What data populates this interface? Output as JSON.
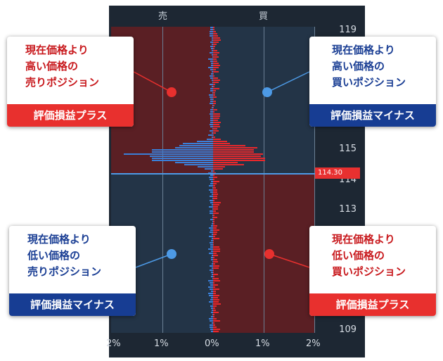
{
  "header": {
    "sell_label": "売",
    "buy_label": "買"
  },
  "price_axis": {
    "labels": [
      "119",
      "115",
      "114",
      "113",
      "109"
    ]
  },
  "percent_axis": {
    "labels": [
      "2%",
      "1%",
      "0%",
      "1%",
      "2%"
    ]
  },
  "current_price": "114.30",
  "callouts": {
    "top_left": {
      "lines": [
        "現在価格より",
        "高い価格の",
        "売りポジション"
      ],
      "footer": "評価損益プラス"
    },
    "top_right": {
      "lines": [
        "現在価格より",
        "高い価格の",
        "買いポジション"
      ],
      "footer": "評価損益マイナス"
    },
    "bottom_left": {
      "lines": [
        "現在価格より",
        "低い価格の",
        "売りポジション"
      ],
      "footer": "評価損益マイナス"
    },
    "bottom_right": {
      "lines": [
        "現在価格より",
        "低い価格の",
        "買いポジション"
      ],
      "footer": "評価損益プラス"
    }
  },
  "colors": {
    "chart_bg": "#1d2733",
    "profit_zone": "#5a1f24",
    "loss_zone": "#233447",
    "sell_bars": "#3a7fd8",
    "buy_bars": "#e8282c",
    "profit_label": "#e8302e",
    "loss_label": "#173d93"
  }
}
